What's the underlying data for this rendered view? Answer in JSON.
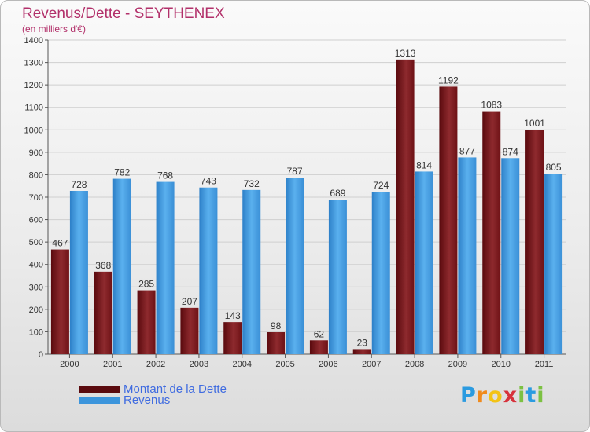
{
  "title": "Revenus/Dette - SEYTHENEX",
  "subtitle": "(en milliers d'€)",
  "logo": "Proxiti",
  "colors": {
    "debt": "#7a1418",
    "revenue": "#3c95dc",
    "title": "#b2306a",
    "legend_text": "#3f6be0"
  },
  "chart_data": {
    "type": "bar",
    "title": "Revenus/Dette - SEYTHENEX",
    "subtitle": "(en milliers d'€)",
    "xlabel": "",
    "ylabel": "",
    "ylim": [
      0,
      1400
    ],
    "ytick_step": 100,
    "grid": true,
    "legend_position": "bottom-left",
    "categories": [
      "2000",
      "2001",
      "2002",
      "2003",
      "2004",
      "2005",
      "2006",
      "2007",
      "2008",
      "2009",
      "2010",
      "2011"
    ],
    "series": [
      {
        "name": "Montant de la Dette",
        "values": [
          467,
          368,
          285,
          207,
          143,
          98,
          62,
          23,
          1313,
          1192,
          1083,
          1001
        ]
      },
      {
        "name": "Revenus",
        "values": [
          728,
          782,
          768,
          743,
          732,
          787,
          689,
          724,
          814,
          877,
          874,
          805
        ]
      }
    ]
  }
}
